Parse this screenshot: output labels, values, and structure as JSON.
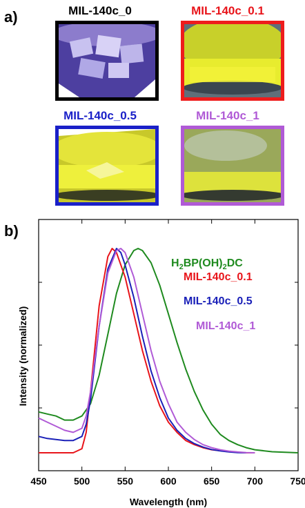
{
  "panel_a": {
    "letter": "a)",
    "tiles": [
      {
        "label": "MIL-140c_0",
        "label_color": "#000000",
        "border_color": "#000000",
        "photo": "purple-crystals-jar"
      },
      {
        "label": "MIL-140c_0.1",
        "label_color": "#e8141a",
        "border_color": "#ee1c1c",
        "photo": "yellow-powder-jar"
      },
      {
        "label": "MIL-140c_0.5",
        "label_color": "#1a20c8",
        "border_color": "#1a20c8",
        "photo": "yellow-powder-jar"
      },
      {
        "label": "MIL-140c_1",
        "label_color": "#b05ad6",
        "border_color": "#b05ad6",
        "photo": "yellow-powder-jar"
      }
    ]
  },
  "panel_b": {
    "letter": "b)"
  },
  "chart_data": {
    "type": "line",
    "xlabel": "Wavelength (nm)",
    "ylabel": "Intensity (normalized)",
    "xlim": [
      450,
      750
    ],
    "ylim": [
      0,
      1.1
    ],
    "x_ticks": [
      "450",
      "500",
      "550",
      "600",
      "650",
      "700",
      "750"
    ],
    "y_ticks_labeled": false,
    "grid": false,
    "legend_placement": "right, in-plot text labels",
    "series": [
      {
        "name_main": "H",
        "name_sub1": "2",
        "name_mid": "BP(OH)",
        "name_sub2": "2",
        "name_end": "DC",
        "color": "#1e8a1e",
        "x": [
          450,
          460,
          470,
          480,
          490,
          500,
          510,
          520,
          530,
          540,
          550,
          560,
          565,
          570,
          580,
          590,
          600,
          610,
          620,
          630,
          640,
          650,
          660,
          670,
          680,
          690,
          700,
          720,
          750
        ],
        "y": [
          0.2,
          0.19,
          0.18,
          0.16,
          0.16,
          0.18,
          0.24,
          0.38,
          0.58,
          0.78,
          0.92,
          0.99,
          1.0,
          0.99,
          0.93,
          0.82,
          0.68,
          0.54,
          0.41,
          0.3,
          0.21,
          0.14,
          0.09,
          0.06,
          0.04,
          0.025,
          0.015,
          0.005,
          0.0
        ]
      },
      {
        "name": "MIL-140c_0.1",
        "color": "#e8141a",
        "x": [
          450,
          470,
          490,
          500,
          505,
          510,
          520,
          530,
          535,
          540,
          550,
          560,
          570,
          580,
          590,
          600,
          610,
          620,
          630,
          640,
          650,
          660,
          670,
          680,
          690,
          700
        ],
        "y": [
          0.0,
          0.0,
          0.0,
          0.02,
          0.1,
          0.3,
          0.72,
          0.96,
          1.0,
          0.98,
          0.86,
          0.68,
          0.5,
          0.35,
          0.23,
          0.15,
          0.1,
          0.06,
          0.04,
          0.025,
          0.015,
          0.01,
          0.005,
          0.002,
          0.0,
          0.0
        ]
      },
      {
        "name": "MIL-140c_0.5",
        "color": "#1a20b8",
        "x": [
          450,
          460,
          470,
          480,
          490,
          500,
          505,
          510,
          520,
          530,
          540,
          545,
          550,
          560,
          570,
          580,
          590,
          600,
          610,
          620,
          630,
          640,
          650,
          660,
          670,
          680,
          690
        ],
        "y": [
          0.08,
          0.07,
          0.065,
          0.06,
          0.06,
          0.08,
          0.14,
          0.26,
          0.62,
          0.9,
          1.0,
          0.98,
          0.92,
          0.76,
          0.57,
          0.4,
          0.27,
          0.17,
          0.11,
          0.07,
          0.045,
          0.028,
          0.016,
          0.009,
          0.004,
          0.001,
          0.0
        ]
      },
      {
        "name": "MIL-140c_1",
        "color": "#b05ad6",
        "x": [
          450,
          460,
          470,
          480,
          490,
          500,
          505,
          510,
          520,
          530,
          540,
          545,
          550,
          560,
          570,
          580,
          590,
          600,
          610,
          620,
          630,
          640,
          650,
          660,
          670,
          680,
          690,
          700
        ],
        "y": [
          0.17,
          0.15,
          0.13,
          0.11,
          0.1,
          0.12,
          0.18,
          0.3,
          0.62,
          0.88,
          0.99,
          1.0,
          0.98,
          0.86,
          0.68,
          0.5,
          0.35,
          0.24,
          0.15,
          0.1,
          0.065,
          0.04,
          0.025,
          0.015,
          0.008,
          0.004,
          0.001,
          0.0
        ]
      }
    ]
  }
}
